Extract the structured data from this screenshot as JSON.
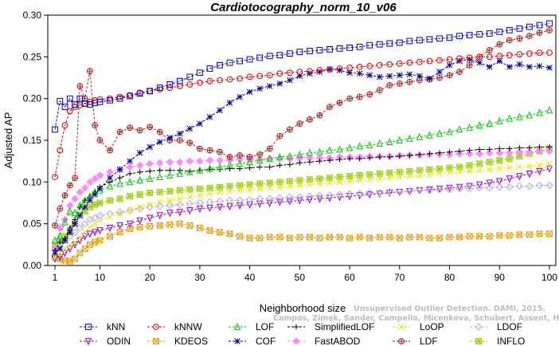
{
  "watermark": {
    "line1": "Unsupervised Outlier Detection. DAMI, 2015.",
    "line2": "Campos, Zimek, Sander, Campello, Micenkova, Schubert, Assent, Houle"
  },
  "chart_data": {
    "type": "line",
    "title": "Cardiotocography_norm_10_v06",
    "xlabel": "Neighborhood size",
    "ylabel": "Adjusted AP",
    "xlim": [
      1,
      100
    ],
    "ylim": [
      0,
      0.3
    ],
    "xticks": [
      1,
      10,
      20,
      30,
      40,
      50,
      60,
      70,
      80,
      90,
      100
    ],
    "yticks": [
      0.0,
      0.05,
      0.1,
      0.15,
      0.2,
      0.25,
      0.3
    ],
    "ytick_labels": [
      "0.00",
      "0.05",
      "0.10",
      "0.15",
      "0.20",
      "0.25",
      "0.30"
    ],
    "grid": false,
    "legend_position": "bottom",
    "x": [
      1,
      2,
      3,
      4,
      5,
      6,
      7,
      8,
      9,
      10,
      12,
      14,
      16,
      18,
      20,
      22,
      24,
      26,
      28,
      30,
      32,
      34,
      36,
      38,
      40,
      42,
      44,
      46,
      48,
      50,
      52,
      54,
      56,
      58,
      60,
      62,
      64,
      66,
      68,
      70,
      72,
      74,
      76,
      78,
      80,
      82,
      84,
      86,
      88,
      90,
      92,
      94,
      96,
      98,
      100
    ],
    "series": [
      {
        "name": "kNN",
        "color": "#0000cc",
        "marker": "square",
        "dash": "dash",
        "values": [
          0.163,
          0.197,
          0.19,
          0.2,
          0.193,
          0.2,
          0.194,
          0.193,
          0.195,
          0.196,
          0.198,
          0.2,
          0.203,
          0.206,
          0.209,
          0.213,
          0.217,
          0.221,
          0.226,
          0.231,
          0.236,
          0.24,
          0.243,
          0.245,
          0.247,
          0.249,
          0.251,
          0.252,
          0.254,
          0.256,
          0.257,
          0.258,
          0.259,
          0.26,
          0.261,
          0.262,
          0.264,
          0.265,
          0.266,
          0.267,
          0.269,
          0.27,
          0.271,
          0.272,
          0.273,
          0.275,
          0.276,
          0.277,
          0.278,
          0.28,
          0.282,
          0.284,
          0.286,
          0.288,
          0.29
        ]
      },
      {
        "name": "kNNW",
        "color": "#dd0000",
        "marker": "circle",
        "dash": "dash",
        "values": [
          0.106,
          0.138,
          0.168,
          0.185,
          0.19,
          0.192,
          0.194,
          0.196,
          0.198,
          0.199,
          0.2,
          0.202,
          0.204,
          0.207,
          0.209,
          0.211,
          0.213,
          0.215,
          0.217,
          0.219,
          0.221,
          0.222,
          0.223,
          0.224,
          0.226,
          0.227,
          0.228,
          0.23,
          0.231,
          0.232,
          0.233,
          0.234,
          0.235,
          0.236,
          0.237,
          0.238,
          0.239,
          0.24,
          0.241,
          0.242,
          0.243,
          0.244,
          0.245,
          0.246,
          0.247,
          0.248,
          0.249,
          0.25,
          0.25,
          0.251,
          0.252,
          0.253,
          0.254,
          0.255,
          0.255
        ]
      },
      {
        "name": "LOF",
        "color": "#00cc00",
        "marker": "triangle-up",
        "dash": "dash",
        "values": [
          0.03,
          0.035,
          0.052,
          0.065,
          0.063,
          0.072,
          0.078,
          0.083,
          0.088,
          0.09,
          0.095,
          0.098,
          0.1,
          0.102,
          0.104,
          0.106,
          0.108,
          0.11,
          0.112,
          0.114,
          0.116,
          0.118,
          0.12,
          0.122,
          0.124,
          0.126,
          0.128,
          0.13,
          0.131,
          0.133,
          0.135,
          0.136,
          0.138,
          0.139,
          0.141,
          0.143,
          0.144,
          0.146,
          0.148,
          0.15,
          0.152,
          0.154,
          0.156,
          0.158,
          0.16,
          0.163,
          0.165,
          0.168,
          0.17,
          0.173,
          0.176,
          0.178,
          0.18,
          0.183,
          0.186
        ]
      },
      {
        "name": "SimplifiedLOF",
        "color": "#000000",
        "marker": "plus",
        "dash": "dash",
        "values": [
          0.018,
          0.028,
          0.032,
          0.045,
          0.055,
          0.07,
          0.078,
          0.082,
          0.088,
          0.094,
          0.1,
          0.105,
          0.11,
          0.112,
          0.113,
          0.114,
          0.114,
          0.114,
          0.113,
          0.114,
          0.115,
          0.115,
          0.116,
          0.116,
          0.117,
          0.118,
          0.118,
          0.12,
          0.121,
          0.123,
          0.124,
          0.125,
          0.126,
          0.127,
          0.128,
          0.128,
          0.129,
          0.13,
          0.13,
          0.131,
          0.132,
          0.133,
          0.134,
          0.135,
          0.136,
          0.137,
          0.138,
          0.139,
          0.139,
          0.14,
          0.14,
          0.141,
          0.141,
          0.142,
          0.142
        ]
      },
      {
        "name": "LoOP",
        "color": "#e6e600",
        "marker": "x",
        "dash": "dash",
        "values": [
          0.01,
          0.015,
          0.02,
          0.025,
          0.028,
          0.034,
          0.04,
          0.046,
          0.05,
          0.054,
          0.058,
          0.062,
          0.066,
          0.07,
          0.073,
          0.076,
          0.078,
          0.08,
          0.082,
          0.084,
          0.086,
          0.088,
          0.089,
          0.09,
          0.091,
          0.092,
          0.093,
          0.094,
          0.095,
          0.096,
          0.097,
          0.098,
          0.099,
          0.1,
          0.101,
          0.102,
          0.103,
          0.104,
          0.105,
          0.106,
          0.107,
          0.108,
          0.109,
          0.11,
          0.111,
          0.112,
          0.113,
          0.114,
          0.115,
          0.116,
          0.117,
          0.118,
          0.119,
          0.12,
          0.122
        ]
      },
      {
        "name": "LDOF",
        "color": "#b0a8dd",
        "marker": "diamond",
        "dash": "dash",
        "values": [
          0.02,
          0.025,
          0.03,
          0.035,
          0.04,
          0.045,
          0.05,
          0.055,
          0.057,
          0.06,
          0.062,
          0.064,
          0.066,
          0.068,
          0.07,
          0.071,
          0.072,
          0.073,
          0.074,
          0.075,
          0.076,
          0.077,
          0.078,
          0.078,
          0.079,
          0.08,
          0.08,
          0.081,
          0.082,
          0.082,
          0.083,
          0.084,
          0.084,
          0.085,
          0.086,
          0.086,
          0.087,
          0.087,
          0.088,
          0.088,
          0.089,
          0.09,
          0.09,
          0.091,
          0.091,
          0.092,
          0.092,
          0.093,
          0.093,
          0.094,
          0.094,
          0.095,
          0.095,
          0.096,
          0.096
        ]
      },
      {
        "name": "ODIN",
        "color": "#9900cc",
        "marker": "triangle-down",
        "dash": "dash",
        "values": [
          0.008,
          0.01,
          0.015,
          0.02,
          0.025,
          0.03,
          0.035,
          0.038,
          0.04,
          0.042,
          0.045,
          0.048,
          0.05,
          0.054,
          0.057,
          0.06,
          0.063,
          0.064,
          0.066,
          0.068,
          0.069,
          0.07,
          0.071,
          0.072,
          0.073,
          0.074,
          0.075,
          0.076,
          0.077,
          0.078,
          0.079,
          0.08,
          0.081,
          0.082,
          0.083,
          0.084,
          0.085,
          0.086,
          0.087,
          0.088,
          0.089,
          0.09,
          0.091,
          0.092,
          0.093,
          0.094,
          0.095,
          0.097,
          0.099,
          0.101,
          0.104,
          0.107,
          0.11,
          0.113,
          0.116
        ]
      },
      {
        "name": "KDEOS",
        "color": "#e69900",
        "marker": "square-x",
        "dash": "dash",
        "values": [
          0.01,
          0.008,
          0.006,
          0.005,
          0.008,
          0.015,
          0.02,
          0.025,
          0.028,
          0.03,
          0.035,
          0.04,
          0.044,
          0.046,
          0.047,
          0.048,
          0.049,
          0.05,
          0.048,
          0.045,
          0.042,
          0.04,
          0.038,
          0.035,
          0.033,
          0.033,
          0.034,
          0.034,
          0.033,
          0.034,
          0.034,
          0.033,
          0.034,
          0.034,
          0.033,
          0.034,
          0.033,
          0.034,
          0.034,
          0.033,
          0.034,
          0.034,
          0.033,
          0.033,
          0.034,
          0.034,
          0.035,
          0.035,
          0.035,
          0.036,
          0.036,
          0.037,
          0.037,
          0.038,
          0.038
        ]
      },
      {
        "name": "COF",
        "color": "#000099",
        "marker": "asterisk",
        "dash": "dash",
        "values": [
          0.015,
          0.02,
          0.03,
          0.04,
          0.05,
          0.06,
          0.07,
          0.078,
          0.085,
          0.092,
          0.105,
          0.115,
          0.125,
          0.135,
          0.142,
          0.148,
          0.153,
          0.158,
          0.164,
          0.17,
          0.178,
          0.186,
          0.195,
          0.202,
          0.208,
          0.212,
          0.215,
          0.218,
          0.222,
          0.227,
          0.23,
          0.232,
          0.235,
          0.234,
          0.231,
          0.23,
          0.228,
          0.226,
          0.227,
          0.228,
          0.229,
          0.227,
          0.224,
          0.232,
          0.24,
          0.245,
          0.247,
          0.243,
          0.238,
          0.245,
          0.238,
          0.241,
          0.238,
          0.239,
          0.237
        ]
      },
      {
        "name": "FastABOD",
        "color": "#ff88ff",
        "marker": "diamond-filled",
        "dash": "dash",
        "values": [
          0.02,
          0.045,
          0.055,
          0.072,
          0.08,
          0.088,
          0.093,
          0.1,
          0.104,
          0.108,
          0.112,
          0.115,
          0.118,
          0.12,
          0.122,
          0.123,
          0.124,
          0.124,
          0.125,
          0.125,
          0.126,
          0.126,
          0.126,
          0.127,
          0.127,
          0.127,
          0.128,
          0.128,
          0.128,
          0.129,
          0.129,
          0.129,
          0.129,
          0.13,
          0.13,
          0.13,
          0.131,
          0.131,
          0.131,
          0.132,
          0.132,
          0.132,
          0.133,
          0.133,
          0.133,
          0.134,
          0.134,
          0.134,
          0.135,
          0.135,
          0.135,
          0.136,
          0.136,
          0.137,
          0.137
        ]
      },
      {
        "name": "LDF",
        "color": "#aa2222",
        "marker": "circle-plus",
        "dash": "dash",
        "values": [
          0.048,
          0.068,
          0.084,
          0.096,
          0.105,
          0.215,
          0.2,
          0.233,
          0.168,
          0.15,
          0.138,
          0.16,
          0.165,
          0.162,
          0.166,
          0.16,
          0.15,
          0.15,
          0.147,
          0.14,
          0.138,
          0.136,
          0.13,
          0.132,
          0.13,
          0.133,
          0.14,
          0.155,
          0.163,
          0.17,
          0.175,
          0.18,
          0.19,
          0.195,
          0.2,
          0.202,
          0.205,
          0.21,
          0.216,
          0.218,
          0.22,
          0.222,
          0.223,
          0.225,
          0.228,
          0.232,
          0.24,
          0.25,
          0.258,
          0.265,
          0.27,
          0.272,
          0.275,
          0.279,
          0.282
        ]
      },
      {
        "name": "INFLO",
        "color": "#99cc00",
        "marker": "square-star",
        "dash": "dash",
        "values": [
          0.025,
          0.03,
          0.035,
          0.04,
          0.05,
          0.06,
          0.065,
          0.07,
          0.073,
          0.075,
          0.078,
          0.08,
          0.083,
          0.085,
          0.087,
          0.088,
          0.089,
          0.09,
          0.091,
          0.092,
          0.093,
          0.094,
          0.095,
          0.096,
          0.097,
          0.098,
          0.099,
          0.1,
          0.101,
          0.102,
          0.103,
          0.104,
          0.105,
          0.106,
          0.107,
          0.108,
          0.109,
          0.11,
          0.111,
          0.112,
          0.113,
          0.114,
          0.115,
          0.116,
          0.117,
          0.118,
          0.12,
          0.122,
          0.124,
          0.126,
          0.128,
          0.131,
          0.134,
          0.137,
          0.14
        ]
      }
    ],
    "legend_order": [
      "kNN",
      "kNNW",
      "LOF",
      "SimplifiedLOF",
      "LoOP",
      "LDOF",
      "ODIN",
      "KDEOS",
      "COF",
      "FastABOD",
      "LDF",
      "INFLO"
    ]
  }
}
